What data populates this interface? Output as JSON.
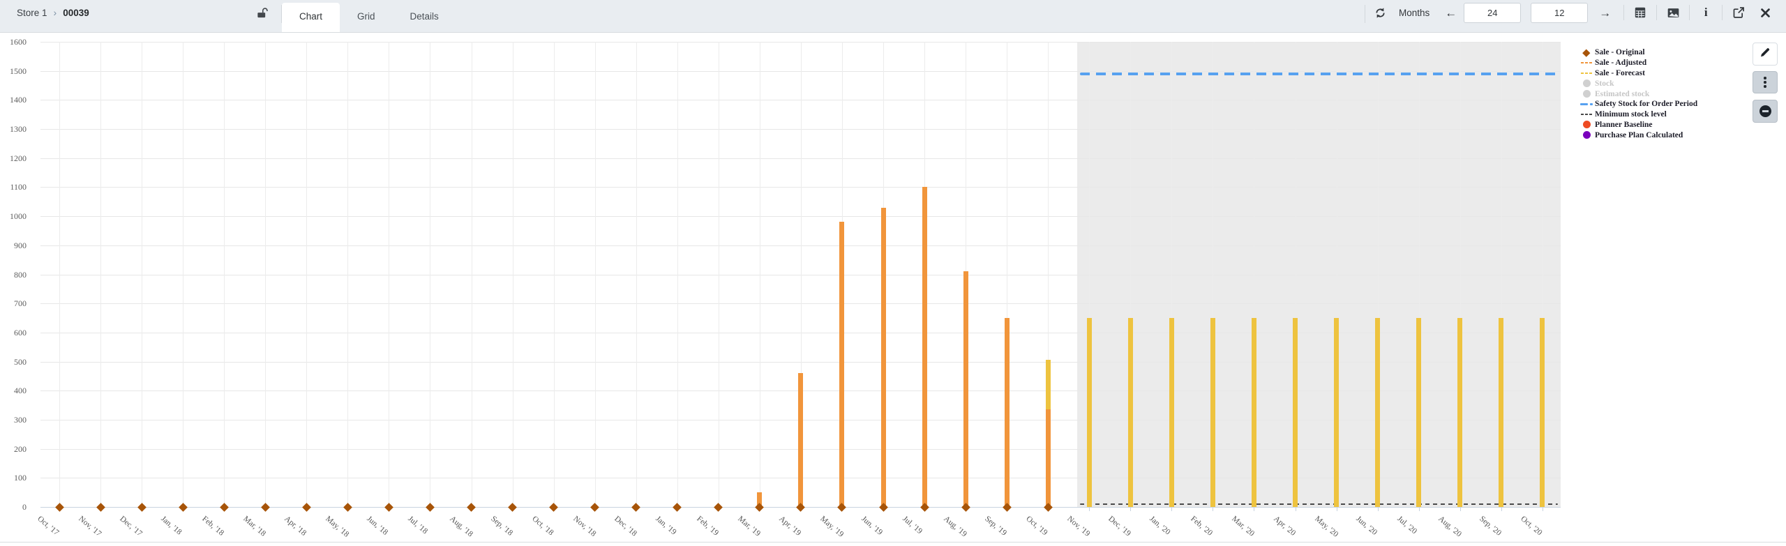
{
  "header": {
    "store": "Store 1",
    "item_id": "00039",
    "tabs": [
      {
        "label": "Chart",
        "active": true
      },
      {
        "label": "Grid",
        "active": false
      },
      {
        "label": "Details",
        "active": false
      }
    ],
    "period_label": "Months",
    "history_months_value": "24",
    "forecast_months_value": "12",
    "toolbar_icons": [
      "unlock-icon",
      "refresh-icon",
      "arrow-left-icon",
      "arrow-right-icon",
      "calculator-icon",
      "image-icon",
      "info-icon",
      "external-link-icon",
      "close-icon"
    ]
  },
  "side_buttons": [
    "edit",
    "more-options",
    "disable"
  ],
  "chart_data": {
    "type": "bar",
    "title": "",
    "xlabel": "",
    "ylabel": "",
    "ylim": [
      0,
      1600
    ],
    "ytick_step": 100,
    "grid": true,
    "legend_position": "right",
    "x": [
      "Oct, '17",
      "Nov, '17",
      "Dec, '17",
      "Jan, '18",
      "Feb, '18",
      "Mar, '18",
      "Apr, '18",
      "May, '18",
      "Jun, '18",
      "Jul, '18",
      "Aug, '18",
      "Sep, '18",
      "Oct, '18",
      "Nov, '18",
      "Dec, '18",
      "Jan, '19",
      "Feb, '19",
      "Mar, '19",
      "Apr, '19",
      "May, '19",
      "Jun, '19",
      "Jul, '19",
      "Aug, '19",
      "Sep, '19",
      "Oct, '19",
      "Nov, '19",
      "Dec, '19",
      "Jan, '20",
      "Feb, '20",
      "Mar, '20",
      "Apr, '20",
      "May, '20",
      "Jun, '20",
      "Jul, '20",
      "Aug, '20",
      "Sep, '20",
      "Oct, '20"
    ],
    "forecast_band_start_label": "Nov, '19",
    "forecast_band_start_index": 25,
    "series": [
      {
        "name": "Sale - Original",
        "marker": "diamond",
        "color": "#a75408",
        "values": [
          0,
          0,
          0,
          0,
          0,
          0,
          0,
          0,
          0,
          0,
          0,
          0,
          0,
          0,
          0,
          0,
          0,
          0,
          0,
          0,
          0,
          0,
          0,
          0,
          0,
          null,
          null,
          null,
          null,
          null,
          null,
          null,
          null,
          null,
          null,
          null,
          null
        ]
      },
      {
        "name": "Sale - Adjusted",
        "marker": "bar",
        "color": "#f1953b",
        "values": [
          null,
          null,
          null,
          null,
          null,
          null,
          null,
          null,
          null,
          null,
          null,
          null,
          null,
          null,
          null,
          null,
          null,
          50,
          460,
          980,
          1030,
          1100,
          810,
          650,
          335,
          null,
          null,
          null,
          null,
          null,
          null,
          null,
          null,
          null,
          null,
          null,
          null
        ]
      },
      {
        "name": "Sale - Forecast",
        "marker": "bar",
        "color": "#eec33f",
        "values": [
          null,
          null,
          null,
          null,
          null,
          null,
          null,
          null,
          null,
          null,
          null,
          null,
          null,
          null,
          null,
          null,
          null,
          null,
          null,
          null,
          null,
          null,
          null,
          null,
          505,
          650,
          650,
          650,
          650,
          650,
          650,
          650,
          650,
          650,
          650,
          650,
          650
        ]
      },
      {
        "name": "Stock",
        "marker": "circle",
        "color": "#d0d0d0",
        "disabled": true,
        "values": []
      },
      {
        "name": "Estimated stock",
        "marker": "circle",
        "color": "#d0d0d0",
        "disabled": true,
        "values": []
      },
      {
        "name": "Safety Stock for Order Period",
        "marker": "dash-blue",
        "color": "#57a1f0",
        "constant": 1490,
        "span": "forecast"
      },
      {
        "name": "Minimum stock level",
        "marker": "dash-small",
        "color": "#4a4a4a",
        "constant": 10,
        "span": "forecast"
      },
      {
        "name": "Planner Baseline",
        "marker": "circle",
        "color": "#ee4b23",
        "values": []
      },
      {
        "name": "Purchase Plan Calculated",
        "marker": "circle",
        "color": "#7a00bd",
        "values": []
      }
    ]
  }
}
